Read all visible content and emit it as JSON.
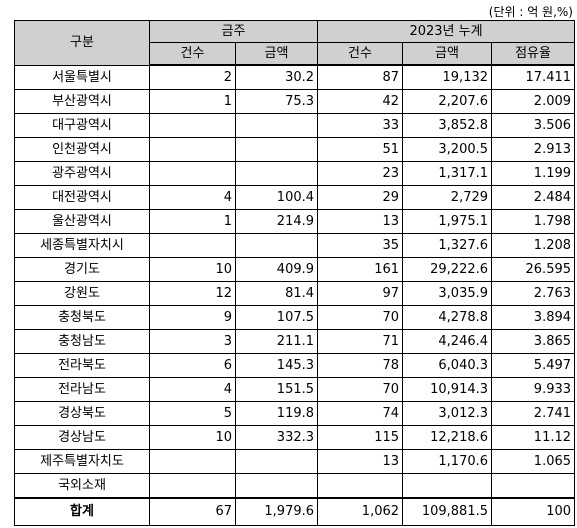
{
  "unit_note": "(단위 : 억 원,%)",
  "header": {
    "region": "구분",
    "group_week": "금주",
    "group_year": "2023년 누계",
    "count": "건수",
    "amount": "금액",
    "share": "점유율"
  },
  "rows": [
    {
      "name": "서울특별시",
      "w_count": "2",
      "w_amount": "30.2",
      "y_count": "87",
      "y_amount": "19,132",
      "share": "17.411"
    },
    {
      "name": "부산광역시",
      "w_count": "1",
      "w_amount": "75.3",
      "y_count": "42",
      "y_amount": "2,207.6",
      "share": "2.009"
    },
    {
      "name": "대구광역시",
      "w_count": "",
      "w_amount": "",
      "y_count": "33",
      "y_amount": "3,852.8",
      "share": "3.506"
    },
    {
      "name": "인천광역시",
      "w_count": "",
      "w_amount": "",
      "y_count": "51",
      "y_amount": "3,200.5",
      "share": "2.913"
    },
    {
      "name": "광주광역시",
      "w_count": "",
      "w_amount": "",
      "y_count": "23",
      "y_amount": "1,317.1",
      "share": "1.199"
    },
    {
      "name": "대전광역시",
      "w_count": "4",
      "w_amount": "100.4",
      "y_count": "29",
      "y_amount": "2,729",
      "share": "2.484"
    },
    {
      "name": "울산광역시",
      "w_count": "1",
      "w_amount": "214.9",
      "y_count": "13",
      "y_amount": "1,975.1",
      "share": "1.798"
    },
    {
      "name": "세종특별자치시",
      "w_count": "",
      "w_amount": "",
      "y_count": "35",
      "y_amount": "1,327.6",
      "share": "1.208"
    },
    {
      "name": "경기도",
      "w_count": "10",
      "w_amount": "409.9",
      "y_count": "161",
      "y_amount": "29,222.6",
      "share": "26.595"
    },
    {
      "name": "강원도",
      "w_count": "12",
      "w_amount": "81.4",
      "y_count": "97",
      "y_amount": "3,035.9",
      "share": "2.763"
    },
    {
      "name": "충청북도",
      "w_count": "9",
      "w_amount": "107.5",
      "y_count": "70",
      "y_amount": "4,278.8",
      "share": "3.894"
    },
    {
      "name": "충청남도",
      "w_count": "3",
      "w_amount": "211.1",
      "y_count": "71",
      "y_amount": "4,246.4",
      "share": "3.865"
    },
    {
      "name": "전라북도",
      "w_count": "6",
      "w_amount": "145.3",
      "y_count": "78",
      "y_amount": "6,040.3",
      "share": "5.497"
    },
    {
      "name": "전라남도",
      "w_count": "4",
      "w_amount": "151.5",
      "y_count": "70",
      "y_amount": "10,914.3",
      "share": "9.933"
    },
    {
      "name": "경상북도",
      "w_count": "5",
      "w_amount": "119.8",
      "y_count": "74",
      "y_amount": "3,012.3",
      "share": "2.741"
    },
    {
      "name": "경상남도",
      "w_count": "10",
      "w_amount": "332.3",
      "y_count": "115",
      "y_amount": "12,218.6",
      "share": "11.12"
    },
    {
      "name": "제주특별자치도",
      "w_count": "",
      "w_amount": "",
      "y_count": "13",
      "y_amount": "1,170.6",
      "share": "1.065"
    },
    {
      "name": "국외소재",
      "w_count": "",
      "w_amount": "",
      "y_count": "",
      "y_amount": "",
      "share": ""
    }
  ],
  "total": {
    "name": "합계",
    "w_count": "67",
    "w_amount": "1,979.6",
    "y_count": "1,062",
    "y_amount": "109,881.5",
    "share": "100"
  }
}
